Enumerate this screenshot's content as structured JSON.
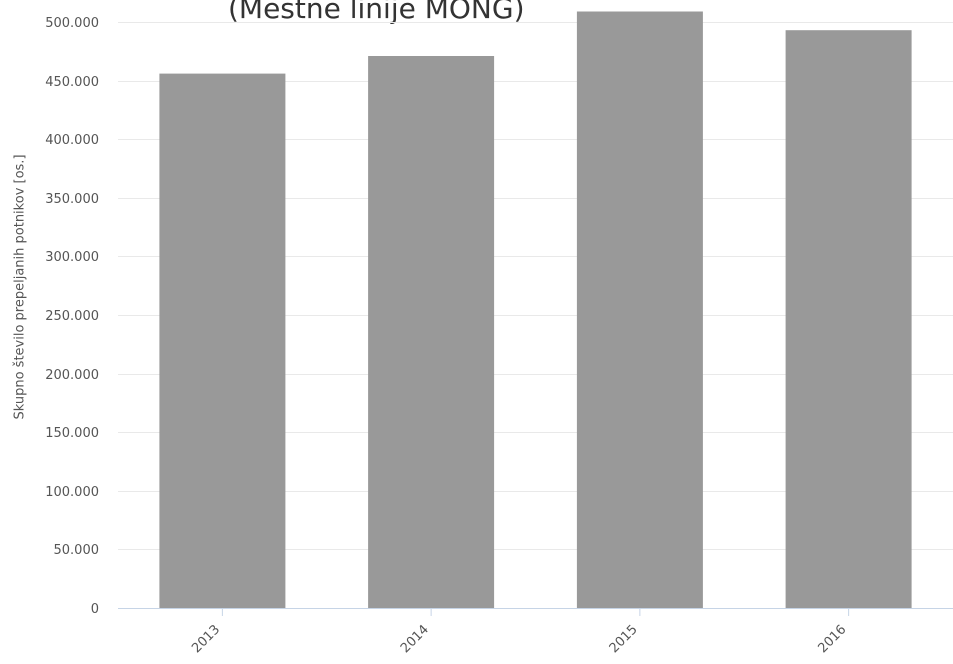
{
  "chart_data": {
    "type": "bar",
    "title": "(Mestne linije MONG)",
    "ylabel": "Skupno število prepeljanih potnikov [os.]",
    "xlabel": "",
    "categories": [
      "2013",
      "2014",
      "2015",
      "2016"
    ],
    "values": [
      456000,
      471000,
      509000,
      493000
    ],
    "ylim": [
      0,
      500000
    ],
    "yticks": [
      "0",
      "50.000",
      "100.000",
      "150.000",
      "200.000",
      "250.000",
      "300.000",
      "350.000",
      "400.000",
      "450.000",
      "500.000"
    ],
    "grid": true,
    "bar_color": "#999999"
  }
}
